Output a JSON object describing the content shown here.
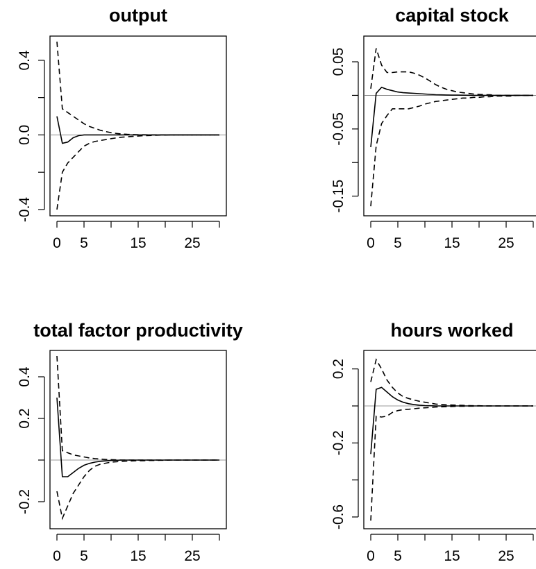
{
  "chart_data": [
    {
      "type": "line",
      "title": "output",
      "x": [
        0,
        1,
        2,
        3,
        4,
        5,
        6,
        7,
        8,
        9,
        10,
        11,
        12,
        13,
        14,
        15,
        16,
        17,
        18,
        19,
        20,
        21,
        22,
        23,
        24,
        25,
        26,
        27,
        28,
        29,
        30
      ],
      "xlim": [
        0,
        30
      ],
      "xticks": [
        0,
        5,
        15,
        25
      ],
      "xtick_labels": [
        "0",
        "5",
        "15",
        "25"
      ],
      "ylim": [
        -0.4,
        0.5
      ],
      "yticks": [
        -0.4,
        0.0,
        0.4
      ],
      "ytick_labels": [
        "-0.4",
        "0.0",
        "0.4"
      ],
      "zero_line": true,
      "series": [
        {
          "style": "solid",
          "values": [
            0.1,
            -0.045,
            -0.038,
            -0.015,
            -0.004,
            0,
            0,
            0,
            0,
            0,
            0,
            0,
            0,
            0,
            0,
            0,
            0,
            0,
            0,
            0,
            0,
            0,
            0,
            0,
            0,
            0,
            0,
            0,
            0,
            0,
            0
          ]
        },
        {
          "style": "dashed",
          "values": [
            0.5,
            0.14,
            0.12,
            0.1,
            0.08,
            0.06,
            0.045,
            0.035,
            0.025,
            0.018,
            0.012,
            0.008,
            0.005,
            0.003,
            0.002,
            0.001,
            0.001,
            0,
            0,
            0,
            0,
            0,
            0,
            0,
            0,
            0,
            0,
            0,
            0,
            0,
            0
          ]
        },
        {
          "style": "dashed",
          "values": [
            -0.4,
            -0.2,
            -0.15,
            -0.12,
            -0.09,
            -0.06,
            -0.045,
            -0.035,
            -0.03,
            -0.025,
            -0.02,
            -0.016,
            -0.012,
            -0.01,
            -0.008,
            -0.006,
            -0.004,
            -0.003,
            -0.002,
            -0.001,
            -0.001,
            0,
            0,
            0,
            0,
            0,
            0,
            0,
            0,
            0,
            0
          ]
        }
      ]
    },
    {
      "type": "line",
      "title": "capital stock",
      "x": [
        0,
        1,
        2,
        3,
        4,
        5,
        6,
        7,
        8,
        9,
        10,
        11,
        12,
        13,
        14,
        15,
        16,
        17,
        18,
        19,
        20,
        21,
        22,
        23,
        24,
        25,
        26,
        27,
        28,
        29,
        30
      ],
      "xlim": [
        0,
        30
      ],
      "xticks": [
        0,
        5,
        15,
        25
      ],
      "xtick_labels": [
        "0",
        "5",
        "15",
        "25"
      ],
      "ylim": [
        -0.17,
        0.08
      ],
      "yticks": [
        -0.15,
        -0.05,
        0.05
      ],
      "ytick_labels": [
        "-0.15",
        "-0.05",
        "0.05"
      ],
      "zero_line": true,
      "series": [
        {
          "style": "solid",
          "values": [
            -0.077,
            0.003,
            0.012,
            0.009,
            0.007,
            0.005,
            0.004,
            0.0035,
            0.003,
            0.0025,
            0.002,
            0.0015,
            0.001,
            0.0008,
            0.0006,
            0.0004,
            0.0003,
            0.0002,
            0.0001,
            0,
            0,
            0,
            0,
            0,
            0,
            0,
            0,
            0,
            0,
            0,
            0
          ]
        },
        {
          "style": "dashed",
          "values": [
            0.01,
            0.07,
            0.045,
            0.034,
            0.034,
            0.035,
            0.035,
            0.035,
            0.033,
            0.03,
            0.026,
            0.021,
            0.016,
            0.012,
            0.009,
            0.007,
            0.005,
            0.004,
            0.003,
            0.002,
            0.0015,
            0.001,
            0.001,
            0,
            0,
            0,
            0,
            0,
            0,
            0,
            0
          ]
        },
        {
          "style": "dashed",
          "values": [
            -0.165,
            -0.075,
            -0.042,
            -0.03,
            -0.02,
            -0.02,
            -0.02,
            -0.02,
            -0.018,
            -0.016,
            -0.013,
            -0.011,
            -0.009,
            -0.008,
            -0.007,
            -0.006,
            -0.005,
            -0.004,
            -0.004,
            -0.003,
            -0.003,
            -0.002,
            -0.002,
            -0.001,
            -0.001,
            -0.001,
            -0.001,
            0,
            0,
            0,
            0
          ]
        }
      ]
    },
    {
      "type": "line",
      "title": "total factor productivity",
      "x": [
        0,
        1,
        2,
        3,
        4,
        5,
        6,
        7,
        8,
        9,
        10,
        11,
        12,
        13,
        14,
        15,
        16,
        17,
        18,
        19,
        20,
        21,
        22,
        23,
        24,
        25,
        26,
        27,
        28,
        29,
        30
      ],
      "xlim": [
        0,
        30
      ],
      "xticks": [
        0,
        5,
        15,
        25
      ],
      "xtick_labels": [
        "0",
        "5",
        "15",
        "25"
      ],
      "ylim": [
        -0.3,
        0.5
      ],
      "yticks": [
        -0.2,
        0.2,
        0.4
      ],
      "ytick_labels": [
        "-0.2",
        "0.2",
        "0.4"
      ],
      "zero_line": true,
      "series": [
        {
          "style": "solid",
          "values": [
            0.3,
            -0.08,
            -0.08,
            -0.06,
            -0.04,
            -0.025,
            -0.016,
            -0.01,
            -0.006,
            -0.004,
            -0.002,
            -0.001,
            0,
            0,
            0,
            0,
            0,
            0,
            0,
            0,
            0,
            0,
            0,
            0,
            0,
            0,
            0,
            0,
            0,
            0,
            0
          ]
        },
        {
          "style": "dashed",
          "values": [
            0.5,
            0.045,
            0.035,
            0.025,
            0.02,
            0.015,
            0.01,
            0.007,
            0.005,
            0.003,
            0.002,
            0.001,
            0,
            0,
            0,
            0,
            0,
            0,
            0,
            0,
            0,
            0,
            0,
            0,
            0,
            0,
            0,
            0,
            0,
            0,
            0
          ]
        },
        {
          "style": "dashed",
          "values": [
            -0.15,
            -0.28,
            -0.22,
            -0.16,
            -0.12,
            -0.08,
            -0.05,
            -0.03,
            -0.02,
            -0.015,
            -0.01,
            -0.008,
            -0.006,
            -0.005,
            -0.004,
            -0.003,
            -0.003,
            -0.002,
            -0.002,
            -0.001,
            -0.001,
            0,
            0,
            0,
            0,
            0,
            0,
            0,
            0,
            0,
            0
          ]
        }
      ]
    },
    {
      "type": "line",
      "title": "hours worked",
      "x": [
        0,
        1,
        2,
        3,
        4,
        5,
        6,
        7,
        8,
        9,
        10,
        11,
        12,
        13,
        14,
        15,
        16,
        17,
        18,
        19,
        20,
        21,
        22,
        23,
        24,
        25,
        26,
        27,
        28,
        29,
        30
      ],
      "xlim": [
        0,
        30
      ],
      "xticks": [
        0,
        5,
        15,
        25
      ],
      "xtick_labels": [
        "0",
        "5",
        "15",
        "25"
      ],
      "ylim": [
        -0.63,
        0.27
      ],
      "yticks": [
        -0.6,
        -0.2,
        0.2
      ],
      "ytick_labels": [
        "-0.6",
        "-0.2",
        "0.2"
      ],
      "zero_line": true,
      "series": [
        {
          "style": "solid",
          "values": [
            -0.26,
            0.09,
            0.1,
            0.075,
            0.05,
            0.032,
            0.02,
            0.012,
            0.007,
            0.004,
            0.002,
            0.001,
            0,
            0,
            0,
            0,
            0,
            0,
            0,
            0,
            0,
            0,
            0,
            0,
            0,
            0,
            0,
            0,
            0,
            0,
            0
          ]
        },
        {
          "style": "dashed",
          "values": [
            0.13,
            0.25,
            0.2,
            0.14,
            0.1,
            0.07,
            0.05,
            0.04,
            0.032,
            0.025,
            0.02,
            0.015,
            0.01,
            0.008,
            0.006,
            0.005,
            0.004,
            0.003,
            0.002,
            0.001,
            0.001,
            0,
            0,
            0,
            0,
            0,
            0,
            0,
            0,
            0,
            0
          ]
        },
        {
          "style": "dashed",
          "values": [
            -0.62,
            -0.055,
            -0.06,
            -0.055,
            -0.035,
            -0.025,
            -0.02,
            -0.018,
            -0.015,
            -0.012,
            -0.01,
            -0.008,
            -0.006,
            -0.005,
            -0.004,
            -0.003,
            -0.002,
            -0.002,
            -0.001,
            -0.001,
            0,
            0,
            0,
            0,
            0,
            0,
            0,
            0,
            0,
            0,
            0
          ]
        }
      ]
    }
  ]
}
